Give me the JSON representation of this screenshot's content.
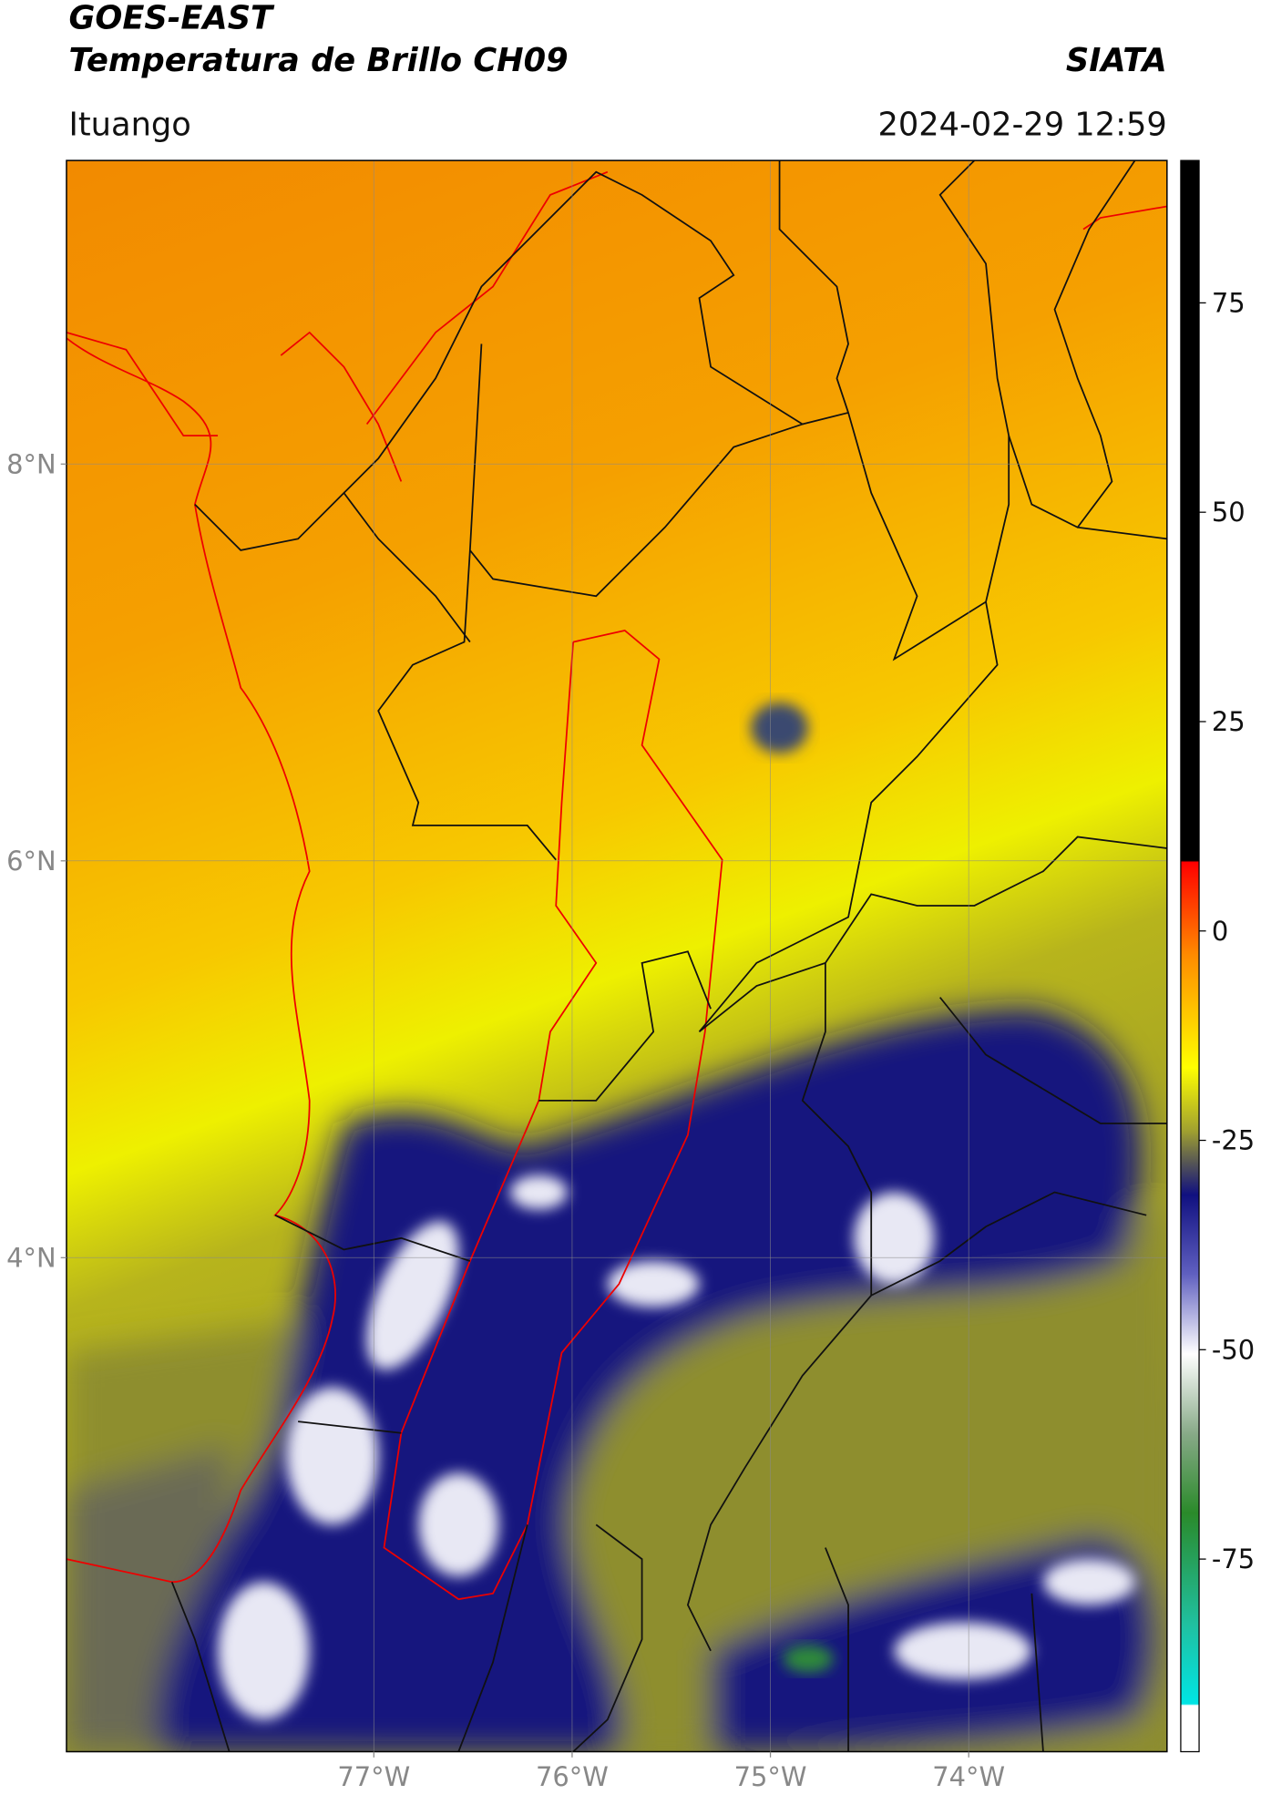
{
  "header": {
    "title": "GOES-EAST",
    "subtitle": "Temperatura de Brillo CH09",
    "source": "SIATA",
    "region": "Ituango",
    "datetime": "2024-02-29 12:59"
  },
  "map": {
    "xlim": [
      -78.55,
      -73.0
    ],
    "ylim": [
      1.51,
      9.53
    ],
    "xticks": [
      {
        "value": -77,
        "label": "77°W"
      },
      {
        "value": -76,
        "label": "76°W"
      },
      {
        "value": -75,
        "label": "75°W"
      },
      {
        "value": -74,
        "label": "74°W"
      }
    ],
    "yticks": [
      {
        "value": 8,
        "label": "8°N"
      },
      {
        "value": 6,
        "label": "6°N"
      },
      {
        "value": 4,
        "label": "4°N"
      }
    ],
    "grid": true
  },
  "colorbar": {
    "lim": [
      -98,
      92
    ],
    "ticks": [
      75,
      50,
      25,
      0,
      -25,
      -50,
      -75
    ]
  }
}
